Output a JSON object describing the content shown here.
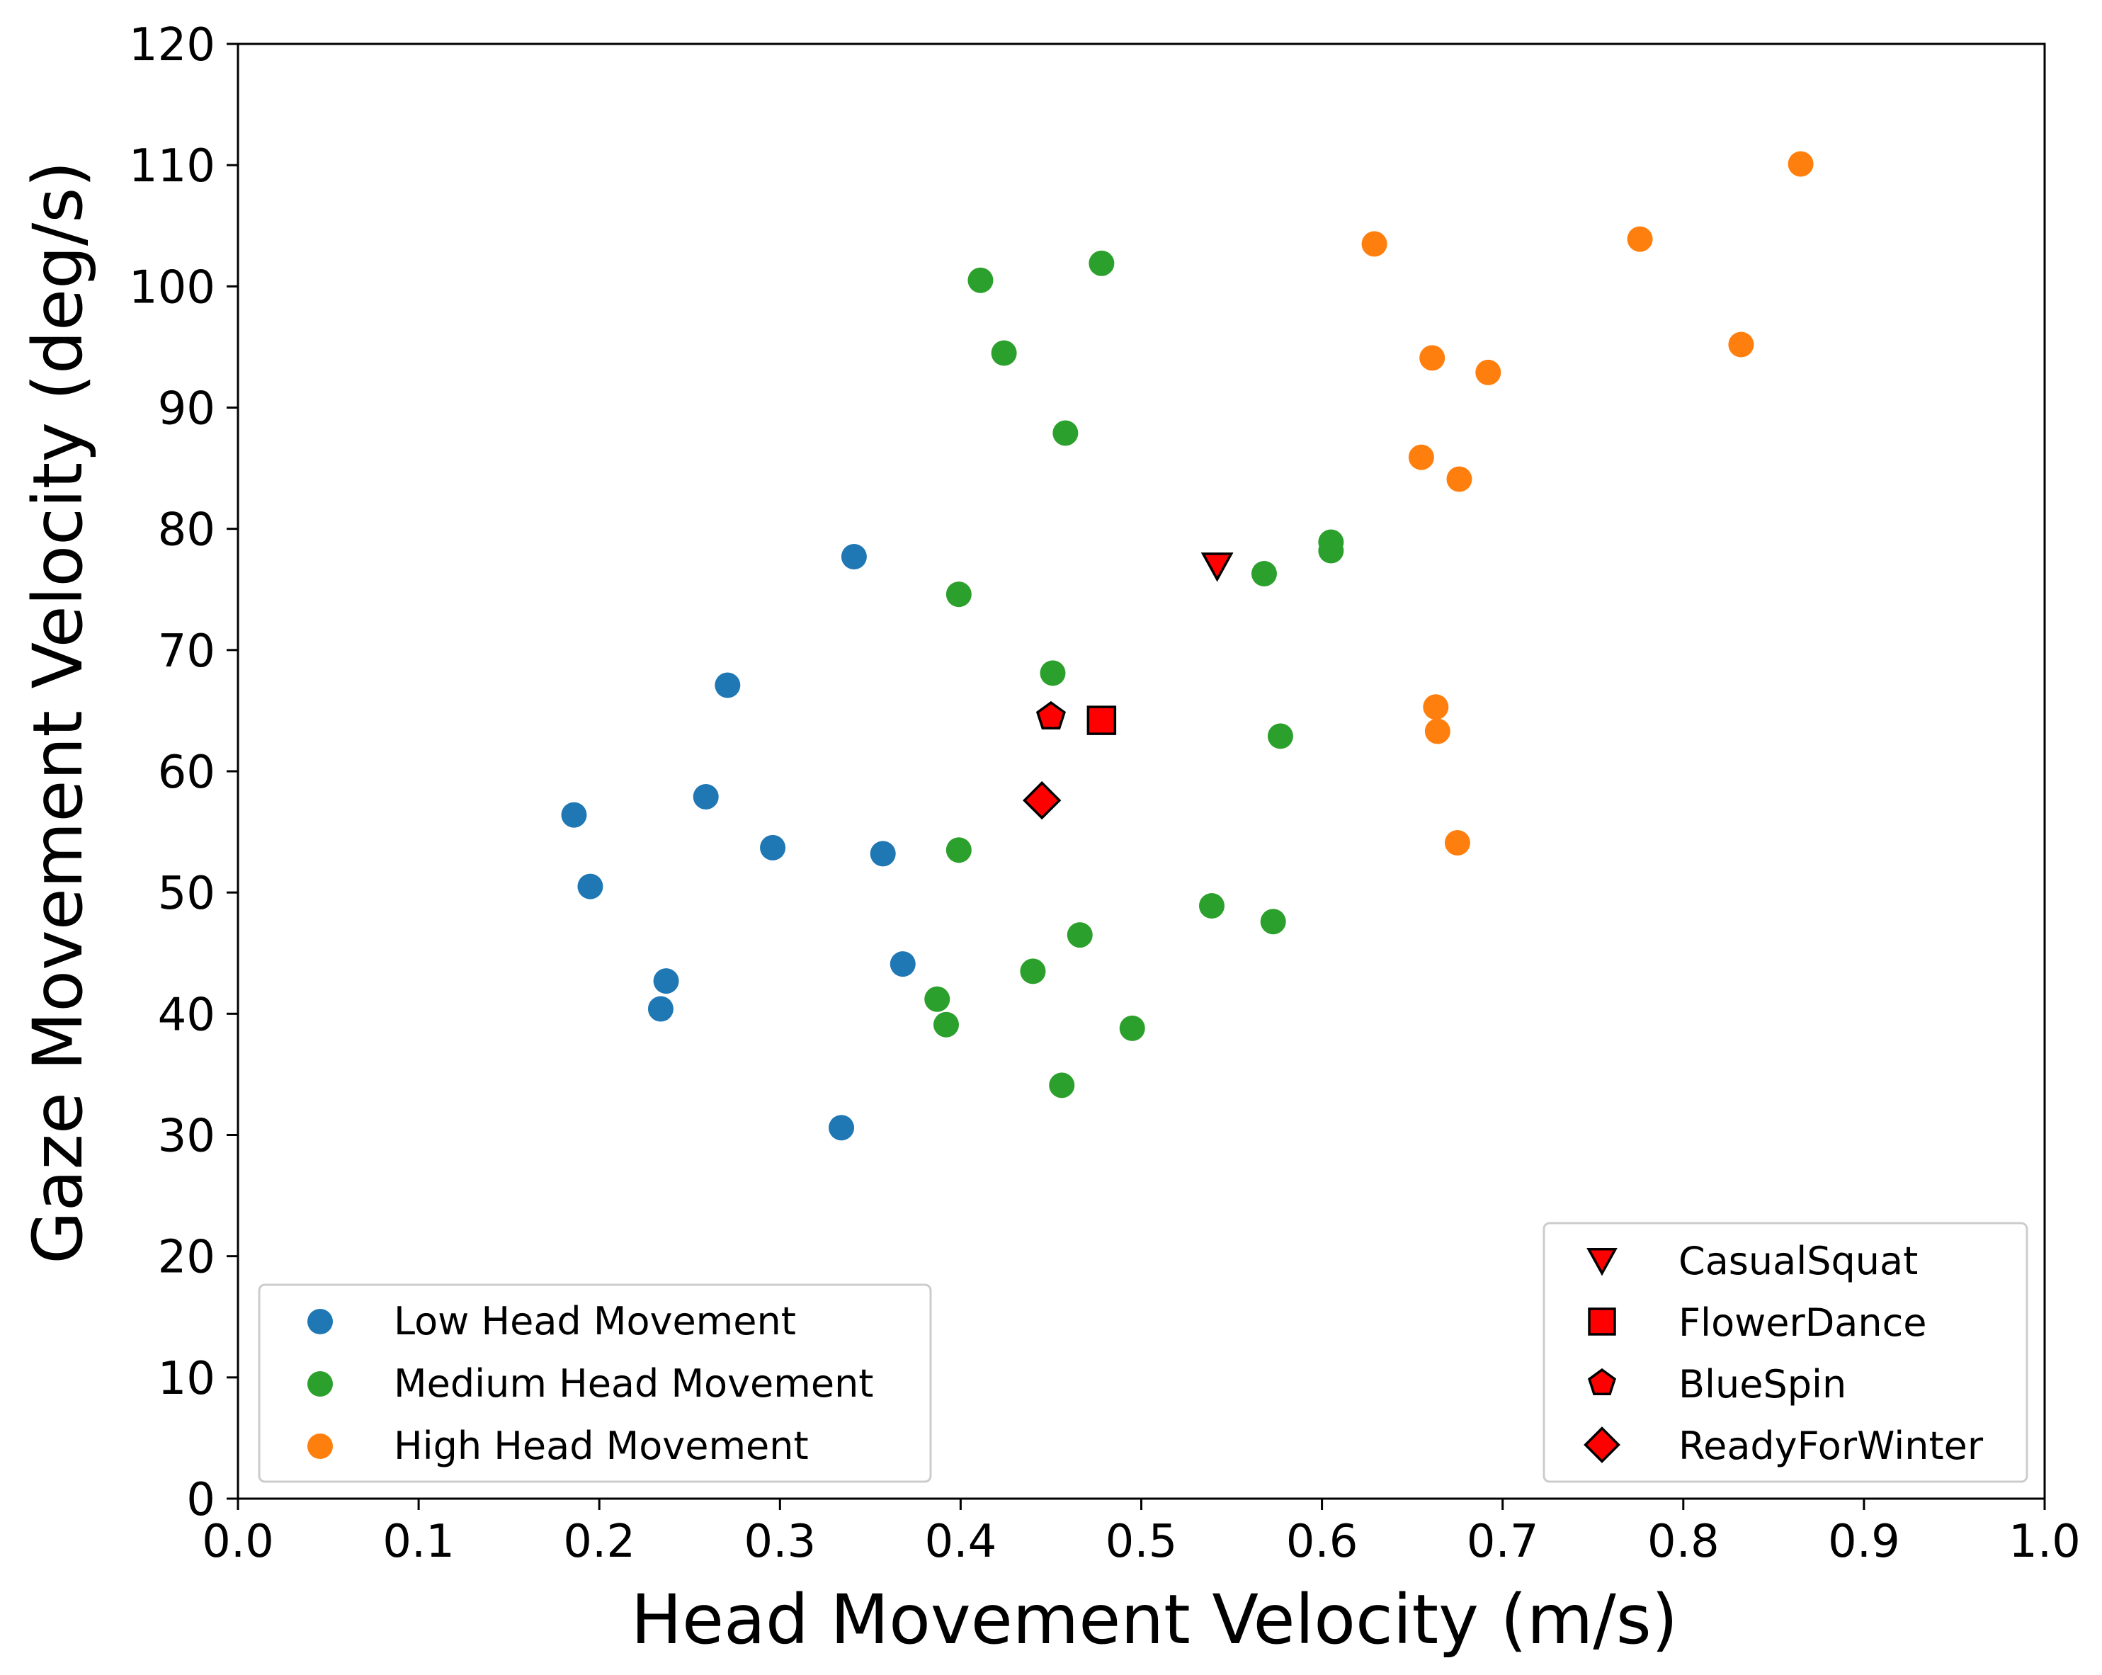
{
  "chart_data": {
    "type": "scatter",
    "xlabel": "Head Movement Velocity (m/s)",
    "ylabel": "Gaze Movement Velocity (deg/s)",
    "xlim": [
      0.0,
      1.0
    ],
    "ylim": [
      0,
      120
    ],
    "xticks": [
      "0.0",
      "0.1",
      "0.2",
      "0.3",
      "0.4",
      "0.5",
      "0.6",
      "0.7",
      "0.8",
      "0.9",
      "1.0"
    ],
    "yticks": [
      "0",
      "10",
      "20",
      "30",
      "40",
      "50",
      "60",
      "70",
      "80",
      "90",
      "100",
      "110",
      "120"
    ],
    "grid": false,
    "series": [
      {
        "name": "Low Head Movement",
        "color": "#1f77b4",
        "marker": "circle",
        "points": [
          [
            0.341,
            77.7
          ],
          [
            0.271,
            67.1
          ],
          [
            0.186,
            56.4
          ],
          [
            0.259,
            57.9
          ],
          [
            0.296,
            53.7
          ],
          [
            0.357,
            53.2
          ],
          [
            0.195,
            50.5
          ],
          [
            0.237,
            42.7
          ],
          [
            0.234,
            40.4
          ],
          [
            0.368,
            44.1
          ],
          [
            0.334,
            30.6
          ]
        ]
      },
      {
        "name": "Medium Head Movement",
        "color": "#2ca02c",
        "marker": "circle",
        "points": [
          [
            0.411,
            100.5
          ],
          [
            0.478,
            101.9
          ],
          [
            0.424,
            94.5
          ],
          [
            0.458,
            87.9
          ],
          [
            0.399,
            74.6
          ],
          [
            0.605,
            78.9
          ],
          [
            0.605,
            78.2
          ],
          [
            0.568,
            76.3
          ],
          [
            0.451,
            68.1
          ],
          [
            0.577,
            62.9
          ],
          [
            0.399,
            53.5
          ],
          [
            0.539,
            48.9
          ],
          [
            0.573,
            47.6
          ],
          [
            0.466,
            46.5
          ],
          [
            0.44,
            43.5
          ],
          [
            0.387,
            41.2
          ],
          [
            0.392,
            39.1
          ],
          [
            0.495,
            38.8
          ],
          [
            0.456,
            34.1
          ]
        ]
      },
      {
        "name": "High Head Movement",
        "color": "#ff7f0e",
        "marker": "circle",
        "points": [
          [
            0.865,
            110.1
          ],
          [
            0.629,
            103.5
          ],
          [
            0.776,
            103.9
          ],
          [
            0.832,
            95.2
          ],
          [
            0.661,
            94.1
          ],
          [
            0.692,
            92.9
          ],
          [
            0.655,
            85.9
          ],
          [
            0.676,
            84.1
          ],
          [
            0.663,
            65.3
          ],
          [
            0.664,
            63.3
          ],
          [
            0.675,
            54.1
          ]
        ]
      }
    ],
    "highlights": [
      {
        "name": "CasualSquat",
        "marker": "triangle-down",
        "color": "#ff0000",
        "x": 0.542,
        "y": 77.0
      },
      {
        "name": "FlowerDance",
        "marker": "square",
        "color": "#ff0000",
        "x": 0.478,
        "y": 64.2
      },
      {
        "name": "BlueSpin",
        "marker": "pentagon",
        "color": "#ff0000",
        "x": 0.45,
        "y": 64.5
      },
      {
        "name": "ReadyForWinter",
        "marker": "diamond",
        "color": "#ff0000",
        "x": 0.445,
        "y": 57.6
      }
    ],
    "legends": {
      "groups_placement": "lower-left",
      "videos_placement": "lower-right"
    }
  }
}
